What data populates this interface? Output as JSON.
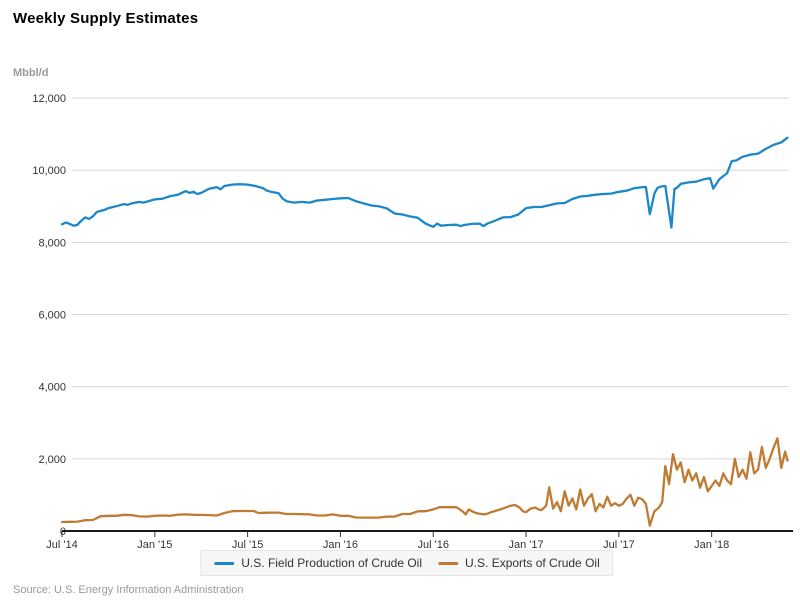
{
  "footer": {
    "source": "Source: U.S. Energy Information Administration"
  },
  "chart_data": {
    "type": "line",
    "title": "Weekly Supply Estimates",
    "xlabel": "",
    "ylabel": "Mbbl/d",
    "ylim": [
      0,
      12000
    ],
    "grid": true,
    "legend_position": "bottom",
    "x_unit": "months since Jul 2014 (weekly data)",
    "x_range": [
      0,
      47
    ],
    "y_ticks": [
      {
        "v": 0,
        "label": "0"
      },
      {
        "v": 2000,
        "label": "2,000"
      },
      {
        "v": 4000,
        "label": "4,000"
      },
      {
        "v": 6000,
        "label": "6,000"
      },
      {
        "v": 8000,
        "label": "8,000"
      },
      {
        "v": 10000,
        "label": "10,000"
      },
      {
        "v": 12000,
        "label": "12,000"
      }
    ],
    "x_ticks": [
      {
        "m": 0,
        "label": "Jul '14"
      },
      {
        "m": 6,
        "label": "Jan '15"
      },
      {
        "m": 12,
        "label": "Jul '15"
      },
      {
        "m": 18,
        "label": "Jan '16"
      },
      {
        "m": 24,
        "label": "Jul '16"
      },
      {
        "m": 30,
        "label": "Jan '17"
      },
      {
        "m": 36,
        "label": "Jul '17"
      },
      {
        "m": 42,
        "label": "Jan '18"
      }
    ],
    "series": [
      {
        "name": "U.S. Field Production of Crude Oil",
        "color": "#1d87c8",
        "points": [
          [
            0,
            8500
          ],
          [
            0.25,
            8550
          ],
          [
            0.5,
            8510
          ],
          [
            0.75,
            8460
          ],
          [
            1,
            8490
          ],
          [
            1.25,
            8600
          ],
          [
            1.5,
            8690
          ],
          [
            1.75,
            8650
          ],
          [
            2,
            8720
          ],
          [
            2.25,
            8840
          ],
          [
            2.5,
            8870
          ],
          [
            2.75,
            8900
          ],
          [
            3,
            8950
          ],
          [
            3.5,
            9000
          ],
          [
            4,
            9060
          ],
          [
            4.25,
            9040
          ],
          [
            4.5,
            9080
          ],
          [
            5,
            9120
          ],
          [
            5.25,
            9100
          ],
          [
            5.5,
            9130
          ],
          [
            6,
            9190
          ],
          [
            6.5,
            9210
          ],
          [
            7,
            9280
          ],
          [
            7.5,
            9320
          ],
          [
            8,
            9420
          ],
          [
            8.25,
            9370
          ],
          [
            8.5,
            9400
          ],
          [
            8.75,
            9340
          ],
          [
            9,
            9370
          ],
          [
            9.5,
            9480
          ],
          [
            10,
            9530
          ],
          [
            10.25,
            9470
          ],
          [
            10.5,
            9560
          ],
          [
            11,
            9600
          ],
          [
            11.5,
            9610
          ],
          [
            12,
            9600
          ],
          [
            12.5,
            9560
          ],
          [
            13,
            9500
          ],
          [
            13.25,
            9430
          ],
          [
            13.5,
            9400
          ],
          [
            14,
            9360
          ],
          [
            14.25,
            9220
          ],
          [
            14.5,
            9140
          ],
          [
            15,
            9100
          ],
          [
            15.5,
            9120
          ],
          [
            16,
            9100
          ],
          [
            16.5,
            9160
          ],
          [
            17,
            9180
          ],
          [
            17.5,
            9200
          ],
          [
            18,
            9220
          ],
          [
            18.5,
            9230
          ],
          [
            19,
            9140
          ],
          [
            19.5,
            9080
          ],
          [
            20,
            9020
          ],
          [
            20.5,
            9000
          ],
          [
            21,
            8940
          ],
          [
            21.5,
            8800
          ],
          [
            22,
            8770
          ],
          [
            22.5,
            8720
          ],
          [
            23,
            8680
          ],
          [
            23.5,
            8520
          ],
          [
            24,
            8430
          ],
          [
            24.25,
            8520
          ],
          [
            24.5,
            8460
          ],
          [
            25,
            8480
          ],
          [
            25.5,
            8490
          ],
          [
            25.75,
            8450
          ],
          [
            26,
            8480
          ],
          [
            26.5,
            8510
          ],
          [
            27,
            8520
          ],
          [
            27.25,
            8450
          ],
          [
            27.5,
            8520
          ],
          [
            28,
            8600
          ],
          [
            28.5,
            8690
          ],
          [
            29,
            8700
          ],
          [
            29.5,
            8770
          ],
          [
            30,
            8950
          ],
          [
            30.5,
            8980
          ],
          [
            31,
            8980
          ],
          [
            31.5,
            9030
          ],
          [
            32,
            9080
          ],
          [
            32.5,
            9090
          ],
          [
            33,
            9200
          ],
          [
            33.5,
            9270
          ],
          [
            34,
            9290
          ],
          [
            34.5,
            9320
          ],
          [
            35,
            9340
          ],
          [
            35.5,
            9350
          ],
          [
            36,
            9400
          ],
          [
            36.5,
            9430
          ],
          [
            37,
            9500
          ],
          [
            37.5,
            9530
          ],
          [
            37.75,
            9530
          ],
          [
            38,
            8780
          ],
          [
            38.3,
            9350
          ],
          [
            38.5,
            9510
          ],
          [
            38.75,
            9550
          ],
          [
            39,
            9560
          ],
          [
            39.4,
            8410
          ],
          [
            39.6,
            9480
          ],
          [
            39.75,
            9510
          ],
          [
            40,
            9620
          ],
          [
            40.5,
            9660
          ],
          [
            41,
            9680
          ],
          [
            41.5,
            9750
          ],
          [
            41.9,
            9780
          ],
          [
            42.1,
            9490
          ],
          [
            42.5,
            9750
          ],
          [
            43,
            9920
          ],
          [
            43.3,
            10250
          ],
          [
            43.6,
            10270
          ],
          [
            44,
            10370
          ],
          [
            44.5,
            10430
          ],
          [
            45,
            10460
          ],
          [
            45.5,
            10590
          ],
          [
            46,
            10700
          ],
          [
            46.5,
            10770
          ],
          [
            46.9,
            10900
          ]
        ]
      },
      {
        "name": "U.S. Exports of Crude Oil",
        "color": "#c07b32",
        "points": [
          [
            0,
            250
          ],
          [
            0.5,
            255
          ],
          [
            1,
            260
          ],
          [
            1.5,
            300
          ],
          [
            2,
            305
          ],
          [
            2.5,
            410
          ],
          [
            3,
            420
          ],
          [
            3.5,
            420
          ],
          [
            4,
            450
          ],
          [
            4.5,
            440
          ],
          [
            5,
            405
          ],
          [
            5.5,
            400
          ],
          [
            6,
            420
          ],
          [
            6.5,
            430
          ],
          [
            7,
            420
          ],
          [
            7.5,
            455
          ],
          [
            8,
            460
          ],
          [
            8.5,
            450
          ],
          [
            9,
            445
          ],
          [
            9.5,
            440
          ],
          [
            10,
            430
          ],
          [
            10.5,
            500
          ],
          [
            11,
            550
          ],
          [
            11.5,
            555
          ],
          [
            12,
            555
          ],
          [
            12.4,
            555
          ],
          [
            12.7,
            500
          ],
          [
            13,
            505
          ],
          [
            13.5,
            510
          ],
          [
            14,
            510
          ],
          [
            14.5,
            470
          ],
          [
            15,
            470
          ],
          [
            15.5,
            465
          ],
          [
            16,
            460
          ],
          [
            16.5,
            430
          ],
          [
            17,
            430
          ],
          [
            17.5,
            460
          ],
          [
            18,
            420
          ],
          [
            18.5,
            420
          ],
          [
            19,
            375
          ],
          [
            19.5,
            370
          ],
          [
            20,
            370
          ],
          [
            20.5,
            375
          ],
          [
            21,
            400
          ],
          [
            21.5,
            400
          ],
          [
            22,
            470
          ],
          [
            22.5,
            470
          ],
          [
            23,
            545
          ],
          [
            23.5,
            550
          ],
          [
            24,
            600
          ],
          [
            24.4,
            660
          ],
          [
            25,
            660
          ],
          [
            25.5,
            660
          ],
          [
            25.9,
            545
          ],
          [
            26.1,
            460
          ],
          [
            26.3,
            600
          ],
          [
            26.5,
            550
          ],
          [
            26.75,
            500
          ],
          [
            27,
            480
          ],
          [
            27.25,
            460
          ],
          [
            27.5,
            480
          ],
          [
            27.75,
            520
          ],
          [
            28,
            555
          ],
          [
            28.5,
            620
          ],
          [
            29,
            700
          ],
          [
            29.3,
            720
          ],
          [
            29.6,
            640
          ],
          [
            29.8,
            545
          ],
          [
            30,
            520
          ],
          [
            30.3,
            620
          ],
          [
            30.6,
            650
          ],
          [
            30.8,
            600
          ],
          [
            31,
            580
          ],
          [
            31.3,
            700
          ],
          [
            31.5,
            1210
          ],
          [
            31.75,
            620
          ],
          [
            32,
            800
          ],
          [
            32.25,
            550
          ],
          [
            32.5,
            1100
          ],
          [
            32.75,
            700
          ],
          [
            33,
            900
          ],
          [
            33.25,
            600
          ],
          [
            33.5,
            1150
          ],
          [
            33.75,
            700
          ],
          [
            34,
            900
          ],
          [
            34.25,
            1020
          ],
          [
            34.5,
            550
          ],
          [
            34.75,
            750
          ],
          [
            35,
            650
          ],
          [
            35.25,
            950
          ],
          [
            35.5,
            700
          ],
          [
            35.75,
            770
          ],
          [
            36,
            700
          ],
          [
            36.25,
            750
          ],
          [
            36.5,
            900
          ],
          [
            36.75,
            1000
          ],
          [
            37,
            700
          ],
          [
            37.25,
            920
          ],
          [
            37.5,
            880
          ],
          [
            37.75,
            750
          ],
          [
            38,
            150
          ],
          [
            38.3,
            550
          ],
          [
            38.6,
            650
          ],
          [
            38.8,
            800
          ],
          [
            39,
            1800
          ],
          [
            39.25,
            1300
          ],
          [
            39.5,
            2130
          ],
          [
            39.75,
            1700
          ],
          [
            40,
            1900
          ],
          [
            40.25,
            1350
          ],
          [
            40.5,
            1700
          ],
          [
            40.75,
            1400
          ],
          [
            41,
            1600
          ],
          [
            41.25,
            1200
          ],
          [
            41.5,
            1500
          ],
          [
            41.75,
            1100
          ],
          [
            42,
            1250
          ],
          [
            42.25,
            1400
          ],
          [
            42.5,
            1250
          ],
          [
            42.75,
            1600
          ],
          [
            43,
            1400
          ],
          [
            43.25,
            1300
          ],
          [
            43.5,
            2000
          ],
          [
            43.75,
            1500
          ],
          [
            44,
            1700
          ],
          [
            44.25,
            1450
          ],
          [
            44.5,
            2180
          ],
          [
            44.75,
            1600
          ],
          [
            45,
            1700
          ],
          [
            45.25,
            2330
          ],
          [
            45.5,
            1750
          ],
          [
            45.75,
            2000
          ],
          [
            46,
            2300
          ],
          [
            46.25,
            2570
          ],
          [
            46.5,
            1750
          ],
          [
            46.75,
            2200
          ],
          [
            46.9,
            1950
          ]
        ]
      }
    ]
  }
}
